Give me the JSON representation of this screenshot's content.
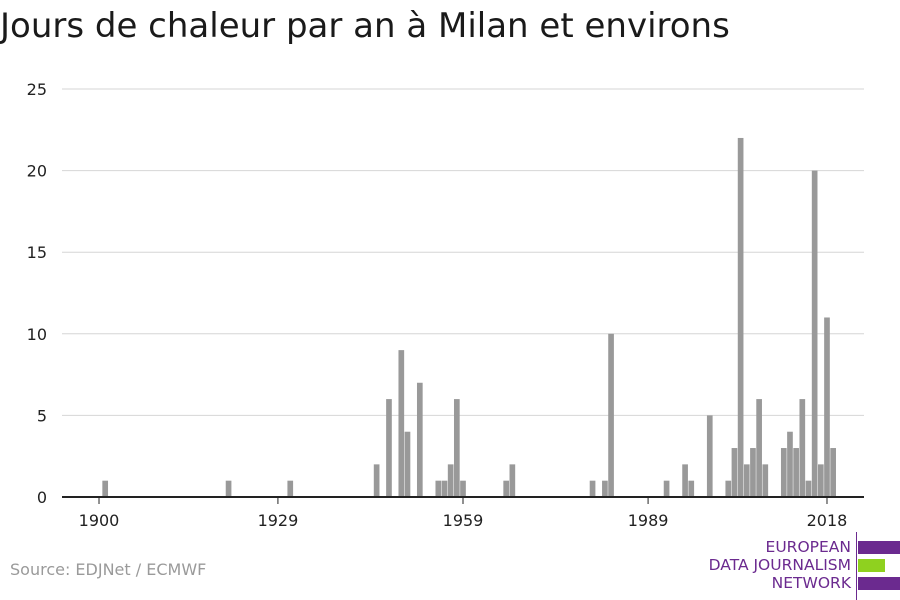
{
  "title": "Jours de chaleur par an à Milan et environs",
  "source": "Source: EDJNet / ECMWF",
  "logo": {
    "lines": [
      "EUROPEAN",
      "DATA JOURNALISM",
      "NETWORK"
    ],
    "colors": {
      "purple": "#6b2a8f",
      "green": "#8fd11f"
    }
  },
  "chart_data": {
    "type": "bar",
    "xlabel": "",
    "ylabel": "",
    "ylim": [
      0,
      25
    ],
    "xlim": [
      1894,
      2024
    ],
    "yticks": [
      0,
      5,
      10,
      15,
      20,
      25
    ],
    "xticks": [
      1900,
      1929,
      1959,
      1989,
      2018
    ],
    "grid": true,
    "bar_color": "#999999",
    "x": [
      1901,
      1921,
      1931,
      1945,
      1947,
      1949,
      1950,
      1952,
      1955,
      1956,
      1957,
      1958,
      1959,
      1966,
      1967,
      1980,
      1982,
      1983,
      1992,
      1995,
      1996,
      1999,
      2002,
      2003,
      2004,
      2005,
      2006,
      2007,
      2008,
      2011,
      2012,
      2013,
      2014,
      2015,
      2016,
      2017,
      2018,
      2019
    ],
    "values": [
      1,
      1,
      1,
      2,
      6,
      9,
      4,
      7,
      1,
      1,
      2,
      6,
      1,
      1,
      2,
      1,
      1,
      10,
      1,
      2,
      1,
      5,
      1,
      3,
      22,
      2,
      3,
      6,
      2,
      3,
      4,
      3,
      6,
      1,
      20,
      2,
      11,
      3
    ]
  }
}
